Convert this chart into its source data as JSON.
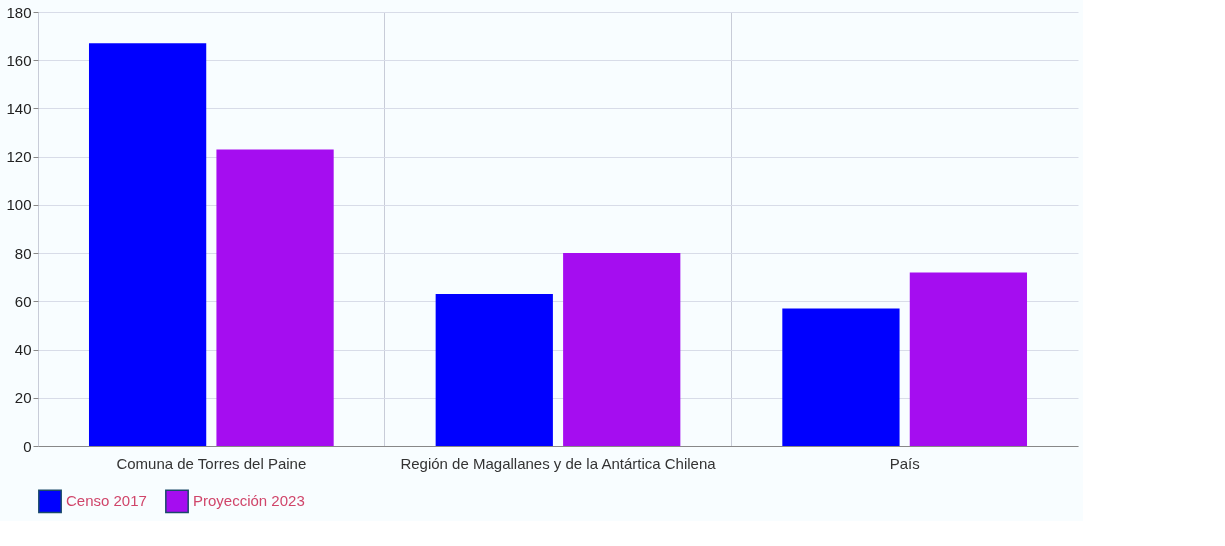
{
  "chart_data": {
    "type": "bar",
    "categories": [
      "Comuna de Torres del Paine",
      "Región de Magallanes y de la Antártica Chilena",
      "País"
    ],
    "series": [
      {
        "name": "Censo 2017",
        "color": "#0000ff",
        "values": [
          167,
          63,
          57
        ]
      },
      {
        "name": "Proyección 2023",
        "color": "#a50df0",
        "values": [
          123,
          80,
          72
        ]
      }
    ],
    "ylim": [
      0,
      180
    ],
    "yticks": [
      0,
      20,
      40,
      60,
      80,
      100,
      120,
      140,
      160,
      180
    ],
    "grid": true,
    "legend": "bottom"
  }
}
